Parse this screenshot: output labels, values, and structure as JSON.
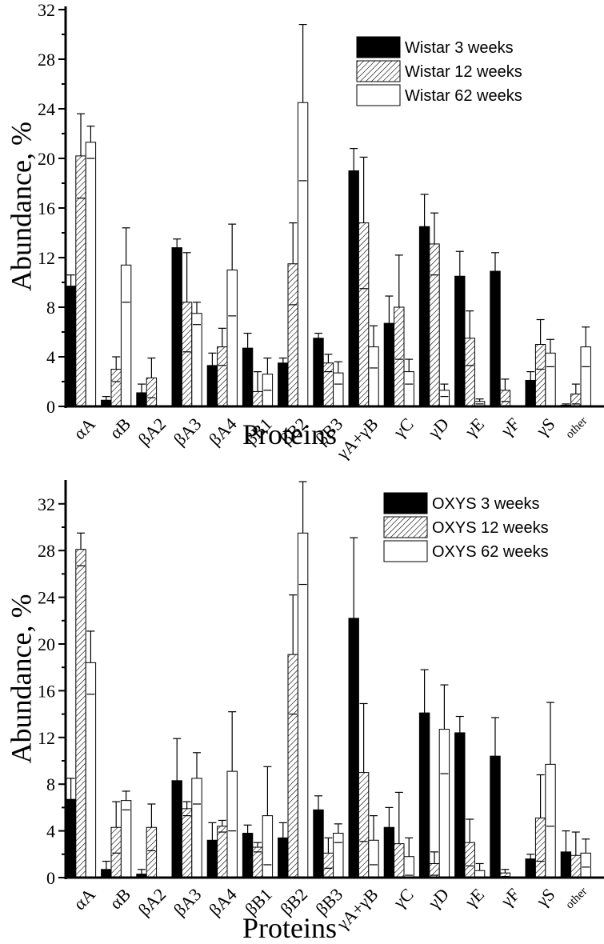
{
  "chart_data": [
    {
      "type": "bar",
      "title": "",
      "xlabel": "Proteins",
      "ylabel": "Abundance, %",
      "ylim": [
        0,
        32
      ],
      "yticks": [
        "0",
        "4",
        "8",
        "12",
        "16",
        "20",
        "24",
        "28",
        "32"
      ],
      "legend_position": "top-right",
      "categories": [
        "αA",
        "αB",
        "βA2",
        "βA3",
        "βA4",
        "βB1",
        "βB2",
        "βB3",
        "γA+γB",
        "γC",
        "γD",
        "γE",
        "γF",
        "γS",
        "other"
      ],
      "series": [
        {
          "name": "Wistar 3 weeks",
          "pattern": "solid",
          "values": [
            9.7,
            0.5,
            1.1,
            12.8,
            3.3,
            4.7,
            3.5,
            5.5,
            19.0,
            6.7,
            14.5,
            10.5,
            10.9,
            2.1,
            0.1
          ],
          "errors": [
            0.9,
            0.3,
            0.7,
            0.7,
            1.0,
            1.2,
            0.4,
            0.4,
            1.8,
            2.2,
            2.6,
            2.0,
            1.5,
            0.7,
            0.1
          ]
        },
        {
          "name": "Wistar 12 weeks",
          "pattern": "hatched",
          "values": [
            20.2,
            3.0,
            2.3,
            8.4,
            4.8,
            1.2,
            11.5,
            3.5,
            14.8,
            8.0,
            13.1,
            5.5,
            1.3,
            5.0,
            1.0
          ],
          "errors": [
            3.4,
            1.0,
            1.6,
            4.0,
            1.5,
            1.6,
            3.3,
            0.7,
            5.3,
            4.2,
            2.5,
            2.2,
            0.9,
            2.0,
            0.8
          ]
        },
        {
          "name": "Wistar 62 weeks",
          "pattern": "open",
          "values": [
            21.3,
            11.4,
            0.0,
            7.5,
            11.0,
            2.6,
            24.5,
            2.7,
            4.8,
            2.8,
            1.3,
            0.4,
            0.0,
            4.3,
            4.8
          ],
          "errors": [
            1.3,
            3.0,
            0.0,
            0.9,
            3.7,
            1.3,
            6.3,
            0.9,
            1.7,
            1.0,
            0.5,
            0.2,
            0.0,
            1.1,
            1.6
          ]
        }
      ]
    },
    {
      "type": "bar",
      "title": "",
      "xlabel": "Proteins",
      "ylabel": "Abundance, %",
      "ylim": [
        0,
        34
      ],
      "yticks": [
        "0",
        "4",
        "8",
        "12",
        "16",
        "20",
        "24",
        "28",
        "32"
      ],
      "legend_position": "top-right",
      "categories": [
        "αA",
        "αB",
        "βA2",
        "βA3",
        "βA4",
        "βB1",
        "βB2",
        "βB3",
        "γA+γB",
        "γC",
        "γD",
        "γE",
        "γF",
        "γS",
        "other"
      ],
      "series": [
        {
          "name": "OXYS 3 weeks",
          "pattern": "solid",
          "values": [
            6.7,
            0.7,
            0.3,
            8.3,
            3.2,
            3.8,
            3.4,
            5.8,
            22.2,
            4.3,
            14.1,
            12.4,
            10.4,
            1.6,
            2.2
          ],
          "errors": [
            1.8,
            0.7,
            0.4,
            3.6,
            1.5,
            0.7,
            1.3,
            1.2,
            6.9,
            1.7,
            3.7,
            1.4,
            3.3,
            0.4,
            1.8
          ]
        },
        {
          "name": "OXYS 12 weeks",
          "pattern": "hatched",
          "values": [
            28.1,
            4.3,
            4.3,
            5.9,
            4.4,
            2.6,
            19.1,
            2.1,
            9.0,
            2.9,
            1.2,
            3.0,
            0.4,
            5.1,
            1.9
          ],
          "errors": [
            1.4,
            2.2,
            2.0,
            0.6,
            0.5,
            0.4,
            5.1,
            1.3,
            5.9,
            4.4,
            1.0,
            2.0,
            0.3,
            3.7,
            2.0
          ]
        },
        {
          "name": "OXYS 62 weeks",
          "pattern": "open",
          "values": [
            18.4,
            6.6,
            0.0,
            8.5,
            9.1,
            5.3,
            29.5,
            3.8,
            3.2,
            1.8,
            12.7,
            0.6,
            0.0,
            9.7,
            2.1
          ],
          "errors": [
            2.7,
            0.8,
            0.0,
            2.2,
            5.1,
            4.2,
            4.4,
            0.8,
            2.1,
            1.6,
            3.8,
            0.6,
            0.0,
            5.3,
            1.2
          ]
        }
      ]
    }
  ]
}
